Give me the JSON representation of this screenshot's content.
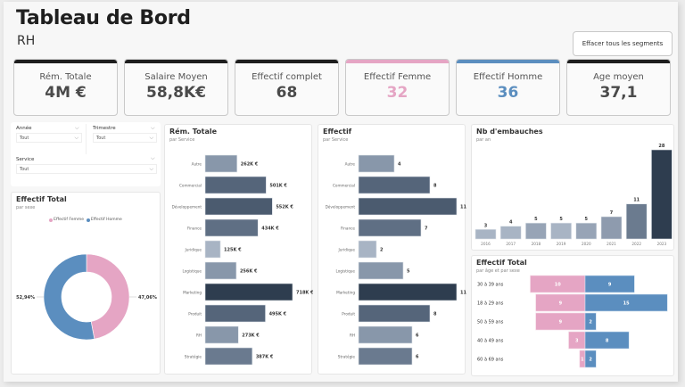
{
  "header": {
    "title": "Tableau de Bord",
    "subtitle": "RH",
    "clear_button": "Effacer tous les segments"
  },
  "colors": {
    "dark": "#2e3d4f",
    "female": "#e5a5c4",
    "male": "#5b8ebf",
    "kpi_top_dark": "#1e1e1e",
    "kpi_top_female": "#e5a5c4",
    "kpi_top_male": "#5b8ebf"
  },
  "kpis": [
    {
      "label": "Rém. Totale",
      "value": "4M €",
      "accent": "#1e1e1e",
      "value_color": "#4a4a4a"
    },
    {
      "label": "Salaire Moyen",
      "value": "58,8K€",
      "accent": "#1e1e1e",
      "value_color": "#4a4a4a"
    },
    {
      "label": "Effectif complet",
      "value": "68",
      "accent": "#1e1e1e",
      "value_color": "#4a4a4a"
    },
    {
      "label": "Effectif Femme",
      "value": "32",
      "accent": "#e5a5c4",
      "value_color": "#e5a5c4"
    },
    {
      "label": "Effectif Homme",
      "value": "36",
      "accent": "#5b8ebf",
      "value_color": "#5b8ebf"
    },
    {
      "label": "Age moyen",
      "value": "37,1",
      "accent": "#1e1e1e",
      "value_color": "#4a4a4a"
    }
  ],
  "slicers": {
    "annee": {
      "label": "Année",
      "value": "Tout"
    },
    "trimestre": {
      "label": "Trimestre",
      "value": "Tout"
    },
    "service": {
      "label": "Service",
      "value": "Tout"
    }
  },
  "chart_data": [
    {
      "id": "donut",
      "type": "pie",
      "title": "Effectif Total",
      "subtitle": "par sexe",
      "legend": [
        "Effectif Femme",
        "Effectif Homme"
      ],
      "legend_position": "top-center",
      "categories": [
        "Effectif Femme",
        "Effectif Homme"
      ],
      "values": [
        32,
        36
      ],
      "labels": [
        "47,06%",
        "52,94%"
      ]
    },
    {
      "id": "rem",
      "type": "bar",
      "orientation": "horizontal",
      "title": "Rém. Totale",
      "subtitle": "par Service",
      "categories": [
        "Autre",
        "Commercial",
        "Développement",
        "Finance",
        "Juridique",
        "Logistique",
        "Marketing",
        "Produit",
        "RH",
        "Stratégie"
      ],
      "values": [
        262,
        501,
        552,
        434,
        125,
        256,
        718,
        495,
        273,
        387
      ],
      "labels": [
        "262K €",
        "501K €",
        "552K €",
        "434K €",
        "125K €",
        "256K €",
        "718K €",
        "495K €",
        "273K €",
        "387K €"
      ],
      "unit": "K €"
    },
    {
      "id": "eff",
      "type": "bar",
      "orientation": "horizontal",
      "title": "Effectif",
      "subtitle": "par Service",
      "categories": [
        "Autre",
        "Commercial",
        "Développement",
        "Finance",
        "Juridique",
        "Logistique",
        "Marketing",
        "Produit",
        "RH",
        "Stratégie"
      ],
      "values": [
        4,
        8,
        11,
        7,
        2,
        5,
        11,
        8,
        6,
        6
      ]
    },
    {
      "id": "hires",
      "type": "bar",
      "orientation": "vertical",
      "title": "Nb d'embauches",
      "subtitle": "par an",
      "categories": [
        "2016",
        "2017",
        "2018",
        "2019",
        "2020",
        "2021",
        "2022",
        "2023"
      ],
      "values": [
        3,
        4,
        5,
        5,
        5,
        7,
        11,
        28
      ]
    },
    {
      "id": "pyramid",
      "type": "bar",
      "orientation": "horizontal-diverging",
      "title": "Effectif Total",
      "subtitle": "par âge et par sexe",
      "categories": [
        "30 à 39 ans",
        "18 à 29 ans",
        "50 à 59 ans",
        "40 à 49 ans",
        "60 à 69 ans"
      ],
      "series": [
        {
          "name": "Effectif Femme",
          "values": [
            10,
            9,
            9,
            3,
            1
          ]
        },
        {
          "name": "Effectif Homme",
          "values": [
            9,
            15,
            2,
            8,
            2
          ]
        }
      ]
    }
  ]
}
